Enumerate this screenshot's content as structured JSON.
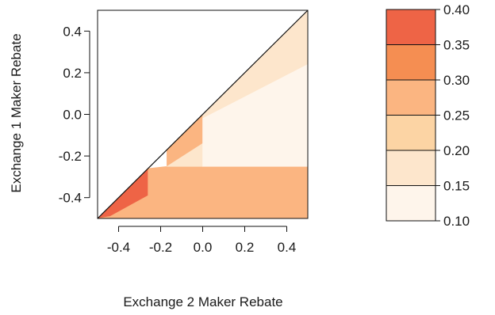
{
  "chart_data": {
    "type": "heatmap",
    "xlabel": "Exchange 2 Maker Rebate",
    "ylabel": "Exchange 1 Maker Rebate",
    "xlim": [
      -0.5,
      0.5
    ],
    "ylim": [
      -0.5,
      0.5
    ],
    "x_ticks": [
      "-0.4",
      "-0.2",
      "0.0",
      "0.2",
      "0.4"
    ],
    "x_tick_values": [
      -0.4,
      -0.2,
      0.0,
      0.2,
      0.4
    ],
    "y_ticks": [
      "0.4",
      "0.2",
      "0.0",
      "-0.2",
      "-0.4"
    ],
    "y_tick_values": [
      0.4,
      0.2,
      0.0,
      -0.2,
      -0.4
    ],
    "diagonal_line": [
      [
        -0.5,
        -0.5
      ],
      [
        0.5,
        0.5
      ]
    ],
    "color_scale": {
      "breaks": [
        0.1,
        0.15,
        0.2,
        0.25,
        0.3,
        0.35,
        0.4
      ],
      "tick_labels": [
        "0.10",
        "0.15",
        "0.20",
        "0.25",
        "0.30",
        "0.35",
        "0.40"
      ],
      "colors": [
        "#fef5eb",
        "#fde6cc",
        "#fcd4a4",
        "#fbb581",
        "#f58e52",
        "#ee6446"
      ]
    },
    "regions": [
      {
        "value_bin": [
          0.35,
          0.4
        ],
        "color": "#ee6446",
        "polygon": [
          [
            -0.5,
            -0.5
          ],
          [
            -0.26,
            -0.26
          ],
          [
            -0.26,
            -0.39
          ],
          [
            -0.44,
            -0.49
          ]
        ]
      },
      {
        "value_bin": [
          0.25,
          0.3
        ],
        "color": "#fbb581",
        "polygon": [
          [
            -0.26,
            -0.26
          ],
          [
            -0.26,
            -0.39
          ],
          [
            -0.44,
            -0.49
          ],
          [
            -0.5,
            -0.5
          ],
          [
            0.5,
            -0.5
          ],
          [
            0.5,
            -0.25
          ],
          [
            -0.17,
            -0.25
          ],
          [
            -0.26,
            -0.26
          ]
        ]
      },
      {
        "value_bin": [
          0.25,
          0.3
        ],
        "color": "#fbb581",
        "polygon": [
          [
            -0.17,
            -0.17
          ],
          [
            0.0,
            0.0
          ],
          [
            0.0,
            -0.14
          ],
          [
            -0.17,
            -0.25
          ]
        ]
      },
      {
        "value_bin": [
          0.15,
          0.2
        ],
        "color": "#fde6cc",
        "polygon": [
          [
            0.0,
            0.0
          ],
          [
            0.5,
            0.5
          ],
          [
            0.5,
            0.24
          ],
          [
            0.0,
            -0.02
          ]
        ]
      },
      {
        "value_bin": [
          0.15,
          0.2
        ],
        "color": "#fde6cc",
        "polygon": [
          [
            0.0,
            -0.14
          ],
          [
            0.0,
            -0.25
          ],
          [
            -0.17,
            -0.25
          ]
        ]
      },
      {
        "value_bin": [
          0.1,
          0.15
        ],
        "color": "#fef5eb",
        "polygon": [
          [
            0.0,
            -0.02
          ],
          [
            0.5,
            0.24
          ],
          [
            0.5,
            -0.25
          ],
          [
            0.0,
            -0.25
          ]
        ]
      }
    ]
  }
}
